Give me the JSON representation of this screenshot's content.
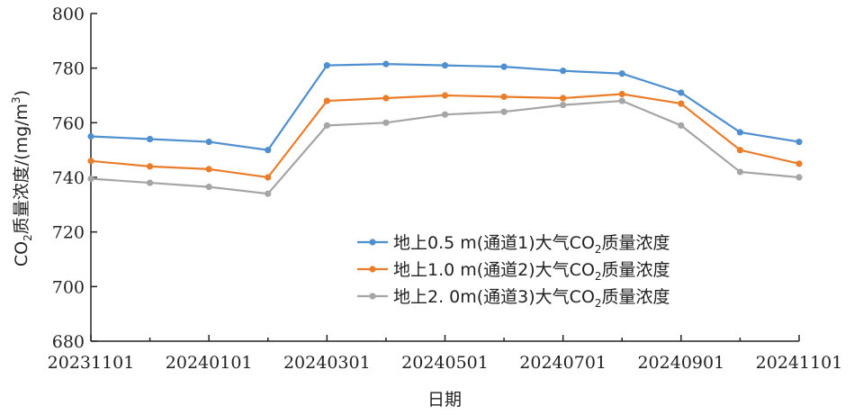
{
  "chart_data": {
    "type": "line",
    "title": "",
    "xlabel": "日期",
    "ylabel": "CO2质量浓度/(mg/m3)",
    "ylim": [
      680,
      800
    ],
    "y_ticks": [
      680,
      700,
      720,
      740,
      760,
      780,
      800
    ],
    "x_tick_labels": [
      "20231101",
      "20240101",
      "20240301",
      "20240501",
      "20240701",
      "20240901",
      "20241101"
    ],
    "x": [
      "20231101",
      "20231201",
      "20240101",
      "20240201",
      "20240301",
      "20240401",
      "20240501",
      "20240601",
      "20240701",
      "20240801",
      "20240901",
      "20241001",
      "20241101"
    ],
    "grid": false,
    "legend_position": "right-center",
    "series": [
      {
        "name": "地上0.5 m(通道1)大气CO2质量浓度",
        "color": "#4e8fd0",
        "values": [
          755,
          754,
          753,
          750,
          781,
          781.5,
          781,
          780.5,
          779,
          778,
          771,
          756.5,
          753
        ]
      },
      {
        "name": "地上1.0 m(通道2)大气CO2质量浓度",
        "color": "#ea7d2a",
        "values": [
          746,
          744,
          743,
          740,
          768,
          769,
          770,
          769.5,
          769,
          770.5,
          767,
          750,
          745
        ]
      },
      {
        "name": "地上2. 0m(通道3)大气CO2质量浓度",
        "color": "#a5a5a5",
        "values": [
          739.5,
          738,
          736.5,
          734,
          759,
          760,
          763,
          764,
          766.5,
          768,
          759,
          742,
          740
        ]
      }
    ]
  }
}
